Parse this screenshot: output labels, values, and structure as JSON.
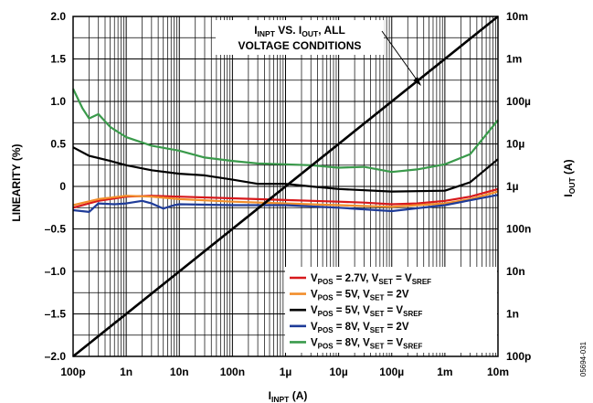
{
  "chart_data": {
    "type": "line",
    "xlabel": {
      "main": "I",
      "sub": "INPT",
      "unit": " (A)"
    },
    "ylabel_left": "LINEARITY (%)",
    "ylabel_right": {
      "main": "I",
      "sub": "OUT",
      "unit": " (A)"
    },
    "xscale": "log",
    "xlim": [
      1e-10,
      0.01
    ],
    "ylim_left": [
      -2.0,
      2.0
    ],
    "yscale_right": "log",
    "ylim_right": [
      1e-10,
      0.01
    ],
    "grid": true,
    "legend_position": "lower-right",
    "x_ticks": [
      "100p",
      "1n",
      "10n",
      "100n",
      "1µ",
      "10µ",
      "100µ",
      "1m",
      "10m"
    ],
    "y_left_ticks": [
      "2.0",
      "1.5",
      "1.0",
      "0.5",
      "0",
      "–0.5",
      "–1.0",
      "–1.5",
      "–2.0"
    ],
    "y_right_ticks": [
      "10m",
      "1m",
      "100µ",
      "10µ",
      "1µ",
      "100n",
      "10n",
      "1n",
      "100p"
    ],
    "annotation": {
      "line1": {
        "a": "I",
        "a_sub": "INPT",
        "b": " VS. I",
        "b_sub": "OUT",
        "c": ", ALL"
      },
      "line2": "VOLTAGE CONDITIONS"
    },
    "series": [
      {
        "name": "VPOS = 2.7V, VSET = VSREF",
        "legend": {
          "p1": "V",
          "s1": "POS",
          "p2": " = 2.7V, V",
          "s2": "SET",
          "p3": " = V",
          "s3": "SREF"
        },
        "color": "#d7191c",
        "axis": "left",
        "x": [
          1e-10,
          3e-10,
          1e-09,
          3e-09,
          1e-08,
          1e-07,
          1e-06,
          1e-05,
          3e-05,
          0.0001,
          0.0003,
          0.001,
          0.003,
          0.01
        ],
        "y": [
          -0.25,
          -0.17,
          -0.12,
          -0.11,
          -0.12,
          -0.14,
          -0.16,
          -0.18,
          -0.19,
          -0.21,
          -0.2,
          -0.17,
          -0.12,
          -0.03
        ]
      },
      {
        "name": "VPOS = 5V, VSET = 2V",
        "legend": {
          "p1": "V",
          "s1": "POS",
          "p2": " = 5V, V",
          "s2": "SET",
          "p3": " = 2V",
          "s3": ""
        },
        "color": "#f28e2b",
        "axis": "left",
        "x": [
          1e-10,
          3e-10,
          1e-09,
          3e-09,
          1e-08,
          1e-07,
          1e-06,
          1e-05,
          0.0001,
          0.001,
          0.003,
          0.01
        ],
        "y": [
          -0.22,
          -0.15,
          -0.11,
          -0.12,
          -0.15,
          -0.18,
          -0.2,
          -0.22,
          -0.24,
          -0.2,
          -0.15,
          -0.06
        ]
      },
      {
        "name": "VPOS = 5V, VSET = VSREF",
        "legend": {
          "p1": "V",
          "s1": "POS",
          "p2": " = 5V, V",
          "s2": "SET",
          "p3": " = V",
          "s3": "SREF"
        },
        "color": "#000000",
        "axis": "left",
        "x": [
          1e-10,
          2e-10,
          5e-10,
          1e-09,
          3e-09,
          1e-08,
          3e-08,
          1e-07,
          3e-07,
          1e-06,
          3e-06,
          1e-05,
          0.0001,
          0.001,
          0.003,
          0.01
        ],
        "y": [
          0.46,
          0.36,
          0.3,
          0.25,
          0.19,
          0.15,
          0.13,
          0.08,
          0.03,
          0.03,
          0.0,
          -0.03,
          -0.06,
          -0.05,
          0.05,
          0.32
        ]
      },
      {
        "name": "VPOS = 8V, VSET = 2V",
        "legend": {
          "p1": "V",
          "s1": "POS",
          "p2": " = 8V, V",
          "s2": "SET",
          "p3": " = 2V",
          "s3": ""
        },
        "color": "#1f3c99",
        "axis": "left",
        "x": [
          1e-10,
          2e-10,
          3e-10,
          6e-10,
          1e-09,
          2e-09,
          3e-09,
          5e-09,
          8e-09,
          1e-08,
          1e-07,
          1e-06,
          1e-05,
          0.0001,
          0.001,
          0.01
        ],
        "y": [
          -0.28,
          -0.3,
          -0.2,
          -0.21,
          -0.2,
          -0.17,
          -0.2,
          -0.26,
          -0.22,
          -0.21,
          -0.22,
          -0.22,
          -0.25,
          -0.29,
          -0.22,
          -0.1
        ]
      },
      {
        "name": "VPOS = 8V, VSET = VSREF",
        "legend": {
          "p1": "V",
          "s1": "POS",
          "p2": " = 8V, V",
          "s2": "SET",
          "p3": " = V",
          "s3": "SREF"
        },
        "color": "#3a9a4b",
        "axis": "left",
        "x": [
          1e-10,
          1.5e-10,
          2e-10,
          3e-10,
          5e-10,
          1e-09,
          3e-09,
          1e-08,
          3e-08,
          1e-07,
          3e-07,
          1e-06,
          3e-06,
          1e-05,
          3e-05,
          0.0001,
          0.0003,
          0.001,
          0.003,
          0.01
        ],
        "y": [
          1.15,
          0.92,
          0.8,
          0.85,
          0.7,
          0.58,
          0.48,
          0.42,
          0.34,
          0.3,
          0.27,
          0.26,
          0.25,
          0.22,
          0.23,
          0.17,
          0.2,
          0.26,
          0.38,
          0.78
        ]
      },
      {
        "name": "IINPT VS. IOUT",
        "color": "#000000",
        "axis": "right",
        "x": [
          1e-10,
          0.01
        ],
        "y": [
          1e-10,
          0.01
        ]
      }
    ]
  },
  "figure_id": "05694-031"
}
